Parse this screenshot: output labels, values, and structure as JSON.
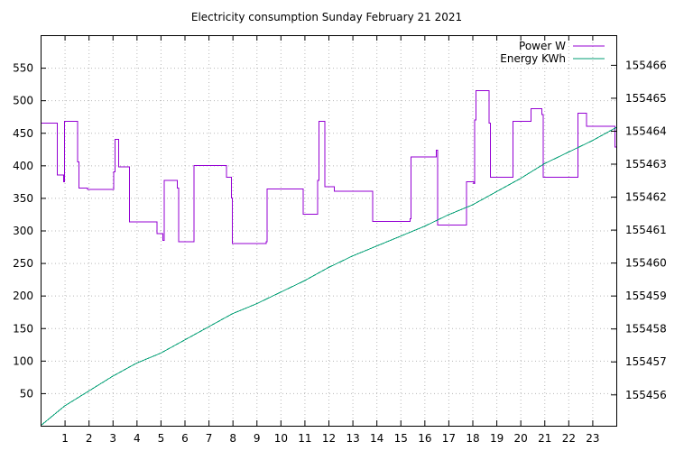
{
  "chart_data": {
    "type": "line",
    "title": "Electricity consumption Sunday February 21 2021",
    "grid": true,
    "legend_position": "top-right",
    "x_ticks": [
      "1",
      "2",
      "3",
      "4",
      "5",
      "6",
      "7",
      "8",
      "9",
      "10",
      "11",
      "12",
      "13",
      "14",
      "15",
      "16",
      "17",
      "18",
      "19",
      "20",
      "21",
      "22",
      "23"
    ],
    "xlim": [
      0,
      24
    ],
    "y_left_ticks": [
      50,
      100,
      150,
      200,
      250,
      300,
      350,
      400,
      450,
      500,
      550
    ],
    "ylim_left": [
      0,
      600
    ],
    "y_right_ticks": [
      155456,
      155457,
      155458,
      155459,
      155460,
      155461,
      155462,
      155463,
      155464,
      155465,
      155466
    ],
    "ylim_right": [
      155455.05,
      155466.9
    ],
    "series": [
      {
        "name": "Power W",
        "color": "#9400d3",
        "axis": "left",
        "step": true,
        "points": [
          [
            0.0,
            465
          ],
          [
            0.7,
            465
          ],
          [
            0.7,
            385
          ],
          [
            0.95,
            385
          ],
          [
            0.95,
            375
          ],
          [
            1.0,
            375
          ],
          [
            1.0,
            468
          ],
          [
            1.55,
            468
          ],
          [
            1.55,
            405
          ],
          [
            1.6,
            405
          ],
          [
            1.6,
            365
          ],
          [
            1.95,
            365
          ],
          [
            1.95,
            363
          ],
          [
            3.05,
            363
          ],
          [
            3.05,
            390
          ],
          [
            3.1,
            390
          ],
          [
            3.1,
            440
          ],
          [
            3.25,
            440
          ],
          [
            3.25,
            398
          ],
          [
            3.7,
            398
          ],
          [
            3.7,
            313
          ],
          [
            4.85,
            313
          ],
          [
            4.85,
            295
          ],
          [
            5.1,
            295
          ],
          [
            5.1,
            285
          ],
          [
            5.15,
            285
          ],
          [
            5.15,
            377
          ],
          [
            5.7,
            377
          ],
          [
            5.7,
            365
          ],
          [
            5.75,
            365
          ],
          [
            5.75,
            283
          ],
          [
            6.4,
            283
          ],
          [
            6.4,
            400
          ],
          [
            7.75,
            400
          ],
          [
            7.75,
            382
          ],
          [
            7.95,
            382
          ],
          [
            7.95,
            350
          ],
          [
            8.0,
            350
          ],
          [
            8.0,
            280
          ],
          [
            9.4,
            280
          ],
          [
            9.4,
            283
          ],
          [
            9.45,
            283
          ],
          [
            9.45,
            364
          ],
          [
            10.95,
            364
          ],
          [
            10.95,
            325
          ],
          [
            11.55,
            325
          ],
          [
            11.55,
            377
          ],
          [
            11.6,
            377
          ],
          [
            11.6,
            468
          ],
          [
            11.85,
            468
          ],
          [
            11.85,
            367
          ],
          [
            12.25,
            367
          ],
          [
            12.25,
            360
          ],
          [
            13.85,
            360
          ],
          [
            13.85,
            314
          ],
          [
            15.4,
            314
          ],
          [
            15.4,
            318
          ],
          [
            15.45,
            318
          ],
          [
            15.45,
            413
          ],
          [
            16.5,
            413
          ],
          [
            16.5,
            423
          ],
          [
            16.55,
            423
          ],
          [
            16.55,
            308
          ],
          [
            17.75,
            308
          ],
          [
            17.75,
            375
          ],
          [
            18.05,
            375
          ],
          [
            18.05,
            372
          ],
          [
            18.1,
            372
          ],
          [
            18.1,
            470
          ],
          [
            18.15,
            470
          ],
          [
            18.15,
            515
          ],
          [
            18.7,
            515
          ],
          [
            18.7,
            465
          ],
          [
            18.75,
            465
          ],
          [
            18.75,
            382
          ],
          [
            19.7,
            382
          ],
          [
            19.7,
            468
          ],
          [
            20.45,
            468
          ],
          [
            20.45,
            487
          ],
          [
            20.9,
            487
          ],
          [
            20.9,
            478
          ],
          [
            20.95,
            478
          ],
          [
            20.95,
            382
          ],
          [
            22.4,
            382
          ],
          [
            22.4,
            480
          ],
          [
            22.75,
            480
          ],
          [
            22.75,
            460
          ],
          [
            23.95,
            460
          ],
          [
            23.95,
            428
          ],
          [
            24.0,
            428
          ]
        ]
      },
      {
        "name": "Energy KWh",
        "color": "#009e73",
        "axis": "right",
        "step": false,
        "points": [
          [
            0.0,
            155455.05
          ],
          [
            1.0,
            155455.65
          ],
          [
            2.0,
            155456.1
          ],
          [
            3.0,
            155456.55
          ],
          [
            4.0,
            155456.95
          ],
          [
            5.0,
            155457.25
          ],
          [
            6.0,
            155457.65
          ],
          [
            7.0,
            155458.05
          ],
          [
            8.0,
            155458.45
          ],
          [
            9.0,
            155458.75
          ],
          [
            10.0,
            155459.1
          ],
          [
            11.0,
            155459.45
          ],
          [
            12.0,
            155459.85
          ],
          [
            13.0,
            155460.2
          ],
          [
            14.0,
            155460.5
          ],
          [
            15.0,
            155460.8
          ],
          [
            16.0,
            155461.1
          ],
          [
            17.0,
            155461.45
          ],
          [
            18.0,
            155461.75
          ],
          [
            19.0,
            155462.15
          ],
          [
            20.0,
            155462.55
          ],
          [
            21.0,
            155463.0
          ],
          [
            22.0,
            155463.35
          ],
          [
            23.0,
            155463.7
          ],
          [
            24.0,
            155464.1
          ]
        ]
      }
    ]
  }
}
